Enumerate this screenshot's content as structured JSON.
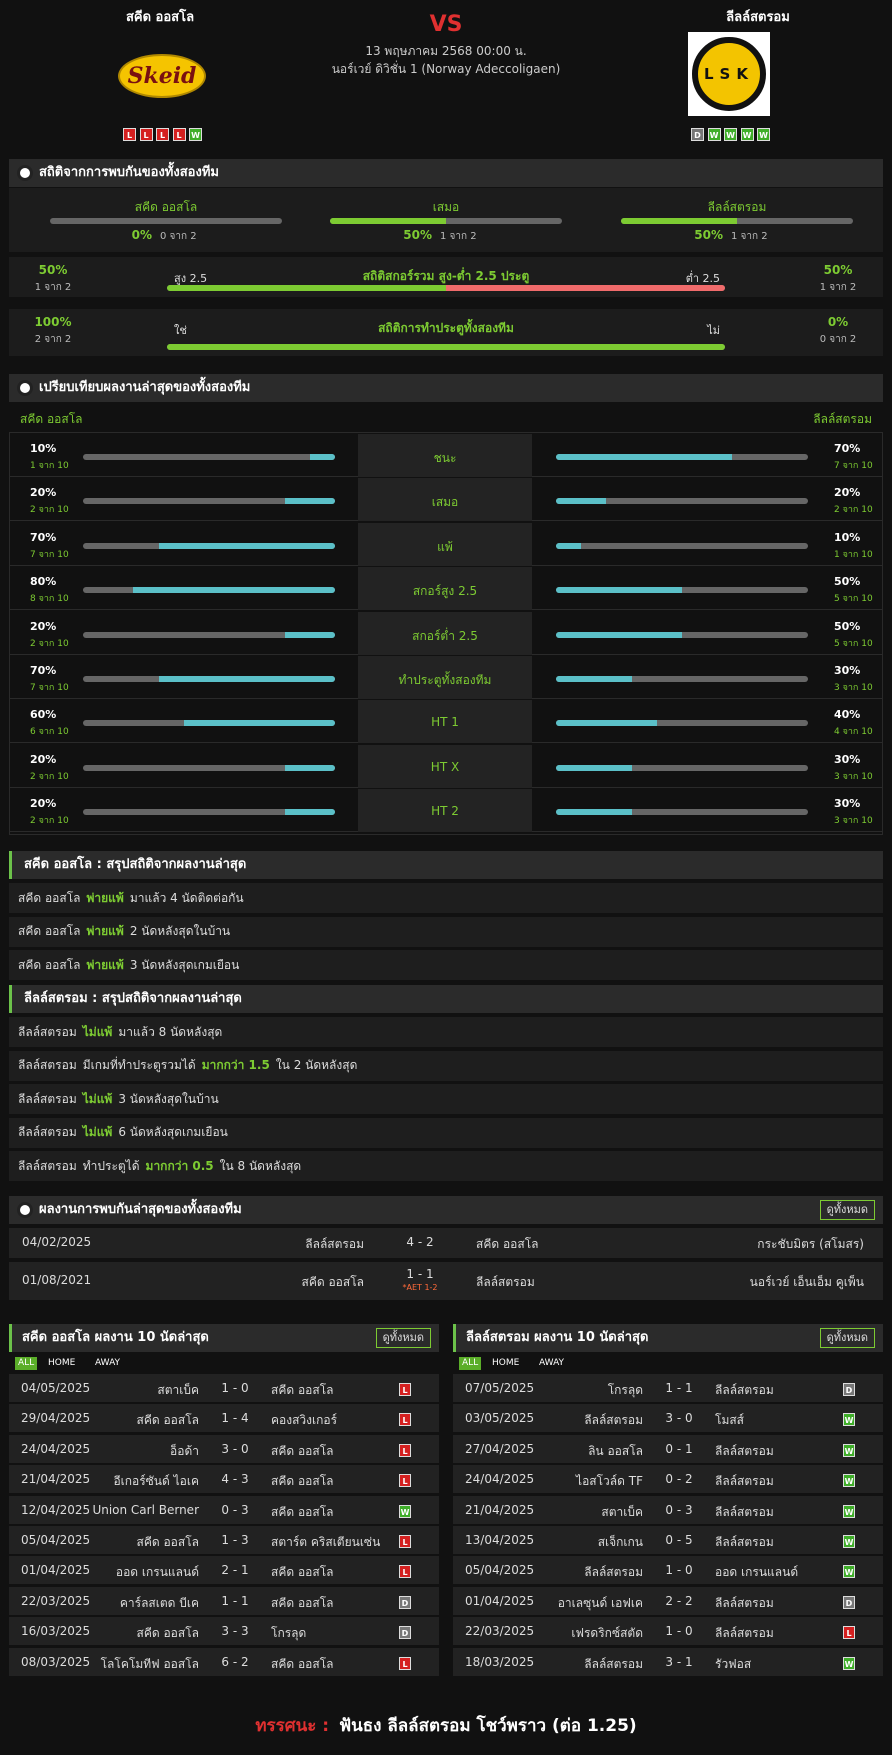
{
  "header": {
    "home_name": "สคีด ออสโล",
    "home_logo_text": "Skeid",
    "vs": "VS",
    "date": "13 พฤษภาคม 2568 00:00 น.",
    "league": "นอร์เวย์ ดิวิชั่น 1 (Norway Adeccoligaen)",
    "away_name": "ลีลล์สตรอม",
    "away_logo_text": "LSK",
    "home_form": [
      "L",
      "L",
      "L",
      "L",
      "W"
    ],
    "away_form": [
      "D",
      "W",
      "W",
      "W",
      "W"
    ]
  },
  "h2h_stats": {
    "title": "สถิติจากการพบกันของทั้งสองทีม",
    "items": [
      {
        "label": "สคีด ออสโล",
        "value": 0,
        "value_label": "0%",
        "count": "0 จาก 2"
      },
      {
        "label": "เสมอ",
        "value": 50,
        "value_label": "50%",
        "count": "1 จาก 2"
      },
      {
        "label": "ลีลล์สตรอม",
        "value": 50,
        "value_label": "50%",
        "count": "1 จาก 2"
      }
    ]
  },
  "over_under": {
    "title": "สถิติสกอร์รวม สูง-ต่ำ 2.5 ประตู",
    "left": {
      "label": "สูง 2.5",
      "value": 50,
      "value_label": "50%",
      "count": "1 จาก 2"
    },
    "right": {
      "label": "ต่ำ 2.5",
      "value": 50,
      "value_label": "50%",
      "count": "1 จาก 2"
    }
  },
  "btts": {
    "title": "สถิติการทำประตูทั้งสองทีม",
    "left": {
      "label": "ใช่",
      "value": 100,
      "value_label": "100%",
      "count": "2 จาก 2"
    },
    "right": {
      "label": "ไม่",
      "value": 0,
      "value_label": "0%",
      "count": "0 จาก 2"
    }
  },
  "compare": {
    "title": "เปรียบเทียบผลงานล่าสุดของทั้งสองทีม",
    "home_name": "สคีด ออสโล",
    "away_name": "ลีลล์สตรอม",
    "rows": [
      {
        "label": "ชนะ",
        "home": {
          "value": 10,
          "value_label": "10%",
          "count": "1 จาก 10"
        },
        "away": {
          "value": 70,
          "value_label": "70%",
          "count": "7 จาก 10"
        }
      },
      {
        "label": "เสมอ",
        "home": {
          "value": 20,
          "value_label": "20%",
          "count": "2 จาก 10"
        },
        "away": {
          "value": 20,
          "value_label": "20%",
          "count": "2 จาก 10"
        }
      },
      {
        "label": "แพ้",
        "home": {
          "value": 70,
          "value_label": "70%",
          "count": "7 จาก 10"
        },
        "away": {
          "value": 10,
          "value_label": "10%",
          "count": "1 จาก 10"
        }
      },
      {
        "label": "สกอร์สูง 2.5",
        "home": {
          "value": 80,
          "value_label": "80%",
          "count": "8 จาก 10"
        },
        "away": {
          "value": 50,
          "value_label": "50%",
          "count": "5 จาก 10"
        }
      },
      {
        "label": "สกอร์ต่ำ 2.5",
        "home": {
          "value": 20,
          "value_label": "20%",
          "count": "2 จาก 10"
        },
        "away": {
          "value": 50,
          "value_label": "50%",
          "count": "5 จาก 10"
        }
      },
      {
        "label": "ทำประตูทั้งสองทีม",
        "home": {
          "value": 70,
          "value_label": "70%",
          "count": "7 จาก 10"
        },
        "away": {
          "value": 30,
          "value_label": "30%",
          "count": "3 จาก 10"
        }
      },
      {
        "label": "HT 1",
        "home": {
          "value": 60,
          "value_label": "60%",
          "count": "6 จาก 10"
        },
        "away": {
          "value": 40,
          "value_label": "40%",
          "count": "4 จาก 10"
        }
      },
      {
        "label": "HT X",
        "home": {
          "value": 20,
          "value_label": "20%",
          "count": "2 จาก 10"
        },
        "away": {
          "value": 30,
          "value_label": "30%",
          "count": "3 จาก 10"
        }
      },
      {
        "label": "HT 2",
        "home": {
          "value": 20,
          "value_label": "20%",
          "count": "2 จาก 10"
        },
        "away": {
          "value": 30,
          "value_label": "30%",
          "count": "3 จาก 10"
        }
      }
    ]
  },
  "home_summary": {
    "title": "สคีด ออสโล : สรุปสถิติจากผลงานล่าสุด",
    "lines": [
      [
        {
          "text": "สคีด ออสโล"
        },
        {
          "text": "พ่ายแพ้",
          "highlight": true
        },
        {
          "text": "มาแล้ว 4 นัดติดต่อกัน"
        }
      ],
      [
        {
          "text": "สคีด ออสโล"
        },
        {
          "text": "พ่ายแพ้",
          "highlight": true
        },
        {
          "text": "2 นัดหลังสุดในบ้าน"
        }
      ],
      [
        {
          "text": "สคีด ออสโล"
        },
        {
          "text": "พ่ายแพ้",
          "highlight": true
        },
        {
          "text": "3 นัดหลังสุดเกมเยือน"
        }
      ]
    ]
  },
  "away_summary": {
    "title": "ลีลล์สตรอม : สรุปสถิติจากผลงานล่าสุด",
    "lines": [
      [
        {
          "text": "ลีลล์สตรอม"
        },
        {
          "text": "ไม่แพ้",
          "highlight": true
        },
        {
          "text": "มาแล้ว 8 นัดหลังสุด"
        }
      ],
      [
        {
          "text": "ลีลล์สตรอม"
        },
        {
          "text": "มีเกมที่ทำประตูรวมได้"
        },
        {
          "text": "มากกว่า 1.5",
          "highlight": true
        },
        {
          "text": "ใน 2 นัดหลังสุด"
        }
      ],
      [
        {
          "text": "ลีลล์สตรอม"
        },
        {
          "text": "ไม่แพ้",
          "highlight": true
        },
        {
          "text": "3 นัดหลังสุดในบ้าน"
        }
      ],
      [
        {
          "text": "ลีลล์สตรอม"
        },
        {
          "text": "ไม่แพ้",
          "highlight": true
        },
        {
          "text": "6 นัดหลังสุดเกมเยือน"
        }
      ],
      [
        {
          "text": "ลีลล์สตรอม"
        },
        {
          "text": "ทำประตูได้"
        },
        {
          "text": "มากกว่า 0.5",
          "highlight": true
        },
        {
          "text": "ใน 8 นัดหลังสุด"
        }
      ]
    ]
  },
  "h2h_results": {
    "title": "ผลงานการพบกันล่าสุดของทั้งสองทีม",
    "button": "ดูทั้งหมด",
    "rows": [
      {
        "date": "04/02/2025",
        "home": "ลีลล์สตรอม",
        "score": "4 - 2",
        "away": "สคีด ออสโล",
        "competition": "กระชับมิตร (สโมสร)"
      },
      {
        "date": "01/08/2021",
        "home": "สคีด ออสโล",
        "score": "1 - 1",
        "note": "*AET 1-2",
        "away": "ลีลล์สตรอม",
        "competition": "นอร์เวย์ เอ็นเอ็ม คูเพ็น"
      }
    ]
  },
  "home_last10": {
    "title": "สคีด ออสโล ผลงาน 10 นัดล่าสุด",
    "button": "ดูทั้งหมด",
    "tabs": [
      "ALL",
      "HOME",
      "AWAY"
    ],
    "rows": [
      {
        "date": "04/05/2025",
        "home": "สตาเบ็ค",
        "score": "1 - 0",
        "away": "สคีด ออสโล",
        "result": "L"
      },
      {
        "date": "29/04/2025",
        "home": "สคีด ออสโล",
        "score": "1 - 4",
        "away": "คองสวิงเกอร์",
        "result": "L"
      },
      {
        "date": "24/04/2025",
        "home": "อ็อด้า",
        "score": "3 - 0",
        "away": "สคีด ออสโล",
        "result": "L"
      },
      {
        "date": "21/04/2025",
        "home": "อีเกอร์ซันด์ ไอเค",
        "score": "4 - 3",
        "away": "สคีด ออสโล",
        "result": "L"
      },
      {
        "date": "12/04/2025",
        "home": "Union Carl Berner",
        "score": "0 - 3",
        "away": "สคีด ออสโล",
        "result": "W"
      },
      {
        "date": "05/04/2025",
        "home": "สคีด ออสโล",
        "score": "1 - 3",
        "away": "สตาร์ต คริสเตียนเซ่น",
        "result": "L"
      },
      {
        "date": "01/04/2025",
        "home": "ออด เกรนแลนด์",
        "score": "2 - 1",
        "away": "สคีด ออสโล",
        "result": "L"
      },
      {
        "date": "22/03/2025",
        "home": "คาร์ลสเตด บีเค",
        "score": "1 - 1",
        "away": "สคีด ออสโล",
        "result": "D"
      },
      {
        "date": "16/03/2025",
        "home": "สคีด ออสโล",
        "score": "3 - 3",
        "away": "โกรลุด",
        "result": "D"
      },
      {
        "date": "08/03/2025",
        "home": "โลโคโมทีฟ ออสโล",
        "score": "6 - 2",
        "away": "สคีด ออสโล",
        "result": "L"
      }
    ]
  },
  "away_last10": {
    "title": "ลีลล์สตรอม ผลงาน 10 นัดล่าสุด",
    "button": "ดูทั้งหมด",
    "tabs": [
      "ALL",
      "HOME",
      "AWAY"
    ],
    "rows": [
      {
        "date": "07/05/2025",
        "home": "โกรลุด",
        "score": "1 - 1",
        "away": "ลีลล์สตรอม",
        "result": "D"
      },
      {
        "date": "03/05/2025",
        "home": "ลีลล์สตรอม",
        "score": "3 - 0",
        "away": "โมสส์",
        "result": "W"
      },
      {
        "date": "27/04/2025",
        "home": "ลิน ออสโล",
        "score": "0 - 1",
        "away": "ลีลล์สตรอม",
        "result": "W"
      },
      {
        "date": "24/04/2025",
        "home": "ไอสโวล์ด TF",
        "score": "0 - 2",
        "away": "ลีลล์สตรอม",
        "result": "W"
      },
      {
        "date": "21/04/2025",
        "home": "สตาเบ็ค",
        "score": "0 - 3",
        "away": "ลีลล์สตรอม",
        "result": "W"
      },
      {
        "date": "13/04/2025",
        "home": "สเจ็กเกน",
        "score": "0 - 5",
        "away": "ลีลล์สตรอม",
        "result": "W"
      },
      {
        "date": "05/04/2025",
        "home": "ลีลล์สตรอม",
        "score": "1 - 0",
        "away": "ออด เกรนแลนด์",
        "result": "W"
      },
      {
        "date": "01/04/2025",
        "home": "อาเลซุนด์ เอฟเค",
        "score": "2 - 2",
        "away": "ลีลล์สตรอม",
        "result": "D"
      },
      {
        "date": "22/03/2025",
        "home": "เฟรดริกซ์สตัด",
        "score": "1 - 0",
        "away": "ลีลล์สตรอม",
        "result": "L"
      },
      {
        "date": "18/03/2025",
        "home": "ลีลล์สตรอม",
        "score": "3 - 1",
        "away": "รัวฟอส",
        "result": "W"
      }
    ]
  },
  "footer": {
    "label": "ทรรศนะ :",
    "text": "ฟันธง ลีลล์สตรอม โชว์พราว (ต่อ 1.25)"
  }
}
